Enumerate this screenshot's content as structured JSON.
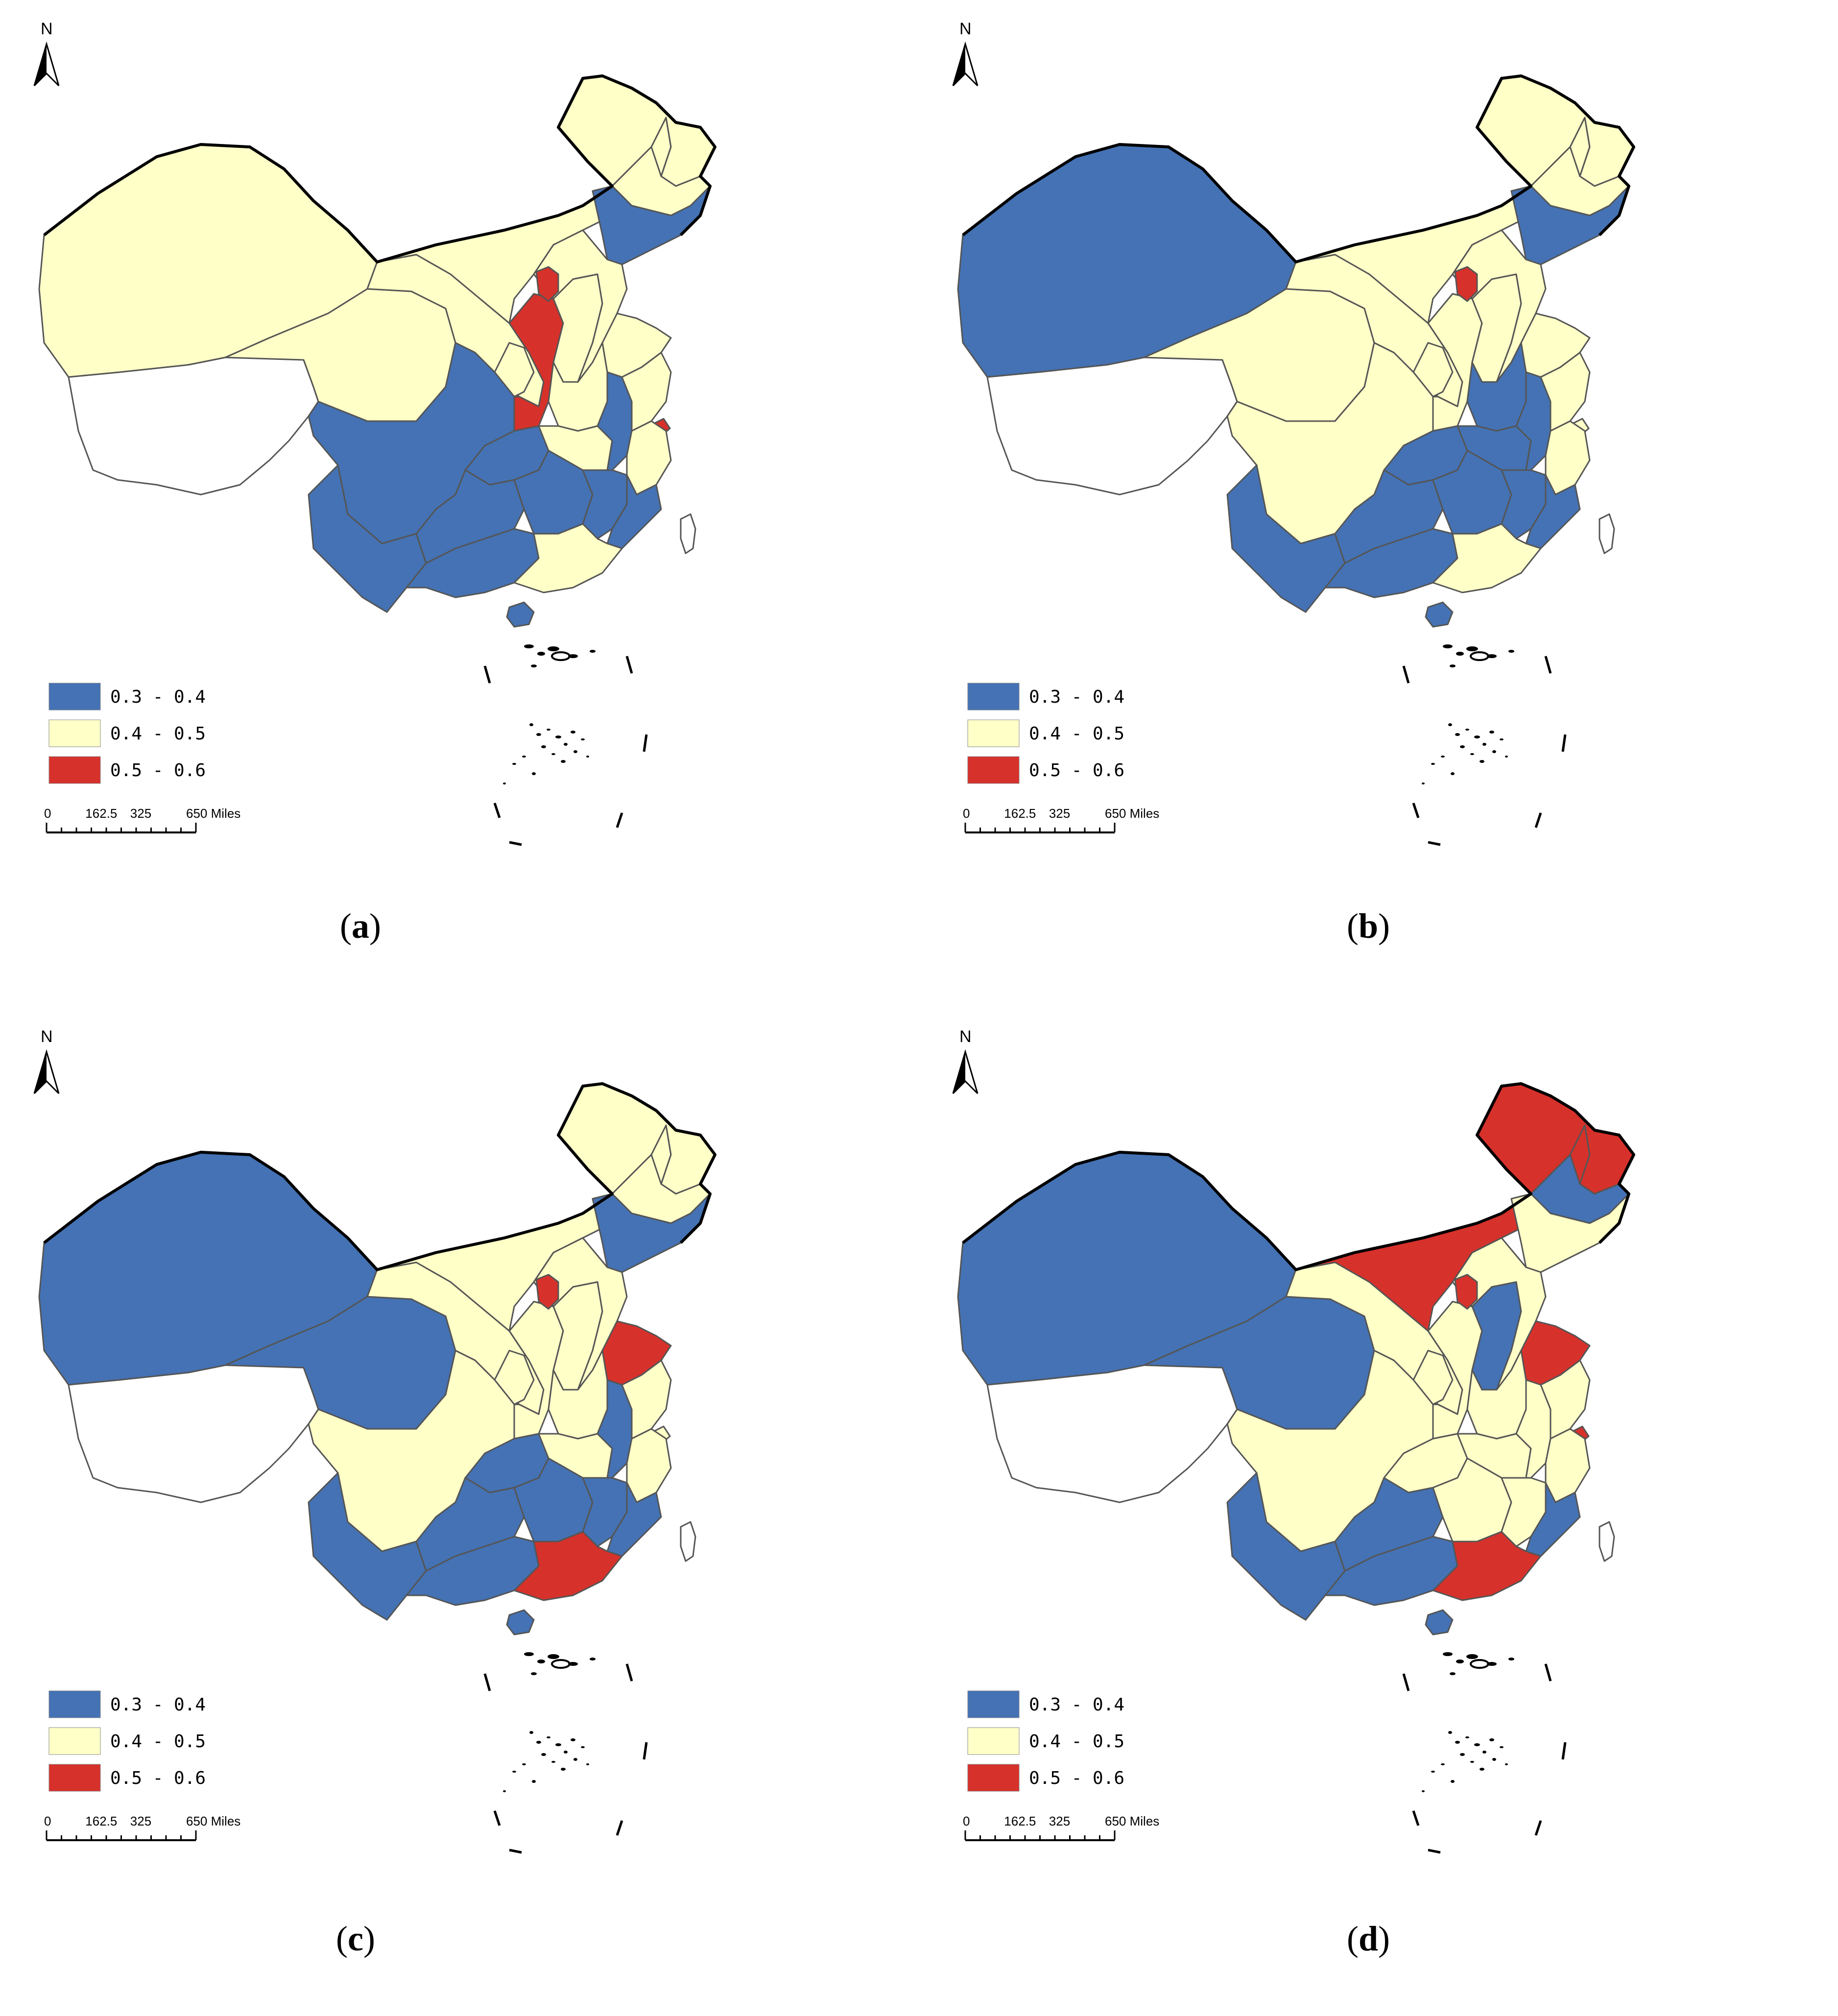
{
  "legend_classes": [
    {
      "label": "0.3 - 0.4",
      "color": "#4472b4"
    },
    {
      "label": "0.4 - 0.5",
      "color": "#ffffc8"
    },
    {
      "label": "0.5 - 0.6",
      "color": "#d7312b"
    }
  ],
  "nodata_color": "#ffffff",
  "north_label": "N",
  "scale_bar": {
    "ticks": [
      "0",
      "162.5",
      "325",
      "650 Miles"
    ]
  },
  "panels": [
    {
      "caption": "a",
      "regions": {
        "xinjiang": "yellow",
        "tibet": "nodata",
        "qinghai": "yellow",
        "gansu": "yellow",
        "inner_mongolia": "yellow",
        "heilongjiang": "yellow",
        "jilin": "yellow",
        "liaoning": "blue",
        "ningxia": "yellow",
        "shaanxi": "red",
        "shanxi": "yellow",
        "hebei": "yellow",
        "beijing": "red",
        "shandong": "yellow",
        "henan": "yellow",
        "sichuan": "blue",
        "chongqing": "blue",
        "yunnan": "blue",
        "guizhou": "blue",
        "guangxi": "blue",
        "hunan": "blue",
        "hubei": "yellow",
        "anhui": "blue",
        "jiangsu": "yellow",
        "shanghai": "red",
        "zhejiang": "yellow",
        "jiangxi": "blue",
        "fujian": "blue",
        "guangdong": "yellow",
        "hainan": "blue",
        "taiwan": "nodata"
      }
    },
    {
      "caption": "b",
      "regions": {
        "xinjiang": "blue",
        "tibet": "nodata",
        "qinghai": "yellow",
        "gansu": "yellow",
        "inner_mongolia": "yellow",
        "heilongjiang": "yellow",
        "jilin": "yellow",
        "liaoning": "blue",
        "ningxia": "yellow",
        "shaanxi": "yellow",
        "shanxi": "yellow",
        "hebei": "yellow",
        "beijing": "red",
        "shandong": "yellow",
        "henan": "blue",
        "sichuan": "yellow",
        "chongqing": "blue",
        "yunnan": "blue",
        "guizhou": "blue",
        "guangxi": "blue",
        "hunan": "blue",
        "hubei": "blue",
        "anhui": "blue",
        "jiangsu": "yellow",
        "shanghai": "yellow",
        "zhejiang": "yellow",
        "jiangxi": "blue",
        "fujian": "blue",
        "guangdong": "yellow",
        "hainan": "blue",
        "taiwan": "nodata"
      }
    },
    {
      "caption": "c",
      "regions": {
        "xinjiang": "blue",
        "tibet": "nodata",
        "qinghai": "blue",
        "gansu": "yellow",
        "inner_mongolia": "yellow",
        "heilongjiang": "yellow",
        "jilin": "yellow",
        "liaoning": "blue",
        "ningxia": "yellow",
        "shaanxi": "yellow",
        "shanxi": "yellow",
        "hebei": "yellow",
        "beijing": "red",
        "shandong": "red",
        "henan": "yellow",
        "sichuan": "yellow",
        "chongqing": "blue",
        "yunnan": "blue",
        "guizhou": "blue",
        "guangxi": "blue",
        "hunan": "blue",
        "hubei": "yellow",
        "anhui": "blue",
        "jiangsu": "yellow",
        "shanghai": "yellow",
        "zhejiang": "yellow",
        "jiangxi": "blue",
        "fujian": "blue",
        "guangdong": "red",
        "hainan": "blue",
        "taiwan": "nodata"
      }
    },
    {
      "caption": "d",
      "regions": {
        "xinjiang": "blue",
        "tibet": "nodata",
        "qinghai": "blue",
        "gansu": "yellow",
        "inner_mongolia": "red",
        "heilongjiang": "red",
        "jilin": "blue",
        "liaoning": "yellow",
        "ningxia": "yellow",
        "shaanxi": "yellow",
        "shanxi": "blue",
        "hebei": "yellow",
        "beijing": "red",
        "shandong": "red",
        "henan": "yellow",
        "sichuan": "yellow",
        "chongqing": "yellow",
        "yunnan": "blue",
        "guizhou": "blue",
        "guangxi": "blue",
        "hunan": "yellow",
        "hubei": "yellow",
        "anhui": "yellow",
        "jiangsu": "yellow",
        "shanghai": "red",
        "zhejiang": "yellow",
        "jiangxi": "yellow",
        "fujian": "blue",
        "guangdong": "red",
        "hainan": "blue",
        "taiwan": "nodata"
      }
    }
  ]
}
